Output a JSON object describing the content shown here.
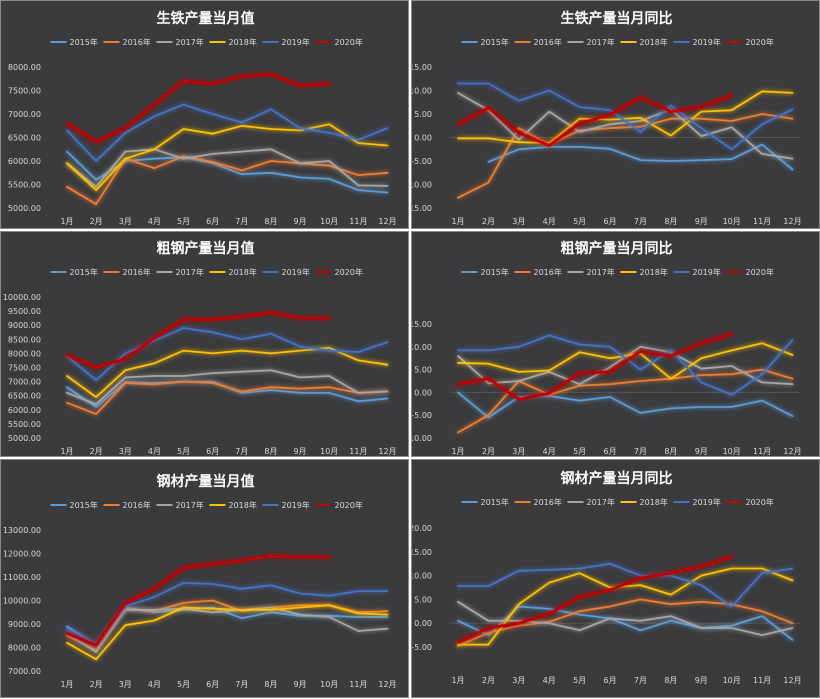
{
  "months": [
    "1月",
    "2月",
    "3月",
    "4月",
    "5月",
    "6月",
    "7月",
    "8月",
    "9月",
    "10月",
    "11月",
    "12月"
  ],
  "colors": {
    "2015年": "#5b9bd5",
    "2016年": "#ed7d31",
    "2017年": "#a5a5a5",
    "2018年": "#ffc000",
    "2019年": "#4472c4",
    "2020年": "#c00000"
  },
  "chart_data": [
    {
      "type": "line",
      "title": "生铁产量当月值",
      "ylim": [
        5000,
        8000
      ],
      "yticks": [
        "5000.00",
        "5500.00",
        "6000.00",
        "6500.00",
        "7000.00",
        "7500.00",
        "8000.00"
      ],
      "yvals": [
        5000,
        5500,
        6000,
        6500,
        7000,
        7500,
        8000
      ],
      "series": [
        {
          "name": "2015年",
          "values": [
            6200,
            5600,
            6000,
            6050,
            6080,
            5950,
            5720,
            5750,
            5650,
            5620,
            5380,
            5330
          ]
        },
        {
          "name": "2016年",
          "values": [
            5450,
            5080,
            6050,
            5850,
            6100,
            5980,
            5800,
            6000,
            5950,
            5900,
            5700,
            5750
          ]
        },
        {
          "name": "2017年",
          "values": [
            5950,
            5450,
            6200,
            6250,
            6050,
            6150,
            6200,
            6250,
            5950,
            6000,
            5480,
            5470
          ]
        },
        {
          "name": "2018年",
          "values": [
            5950,
            5380,
            6050,
            6250,
            6680,
            6580,
            6750,
            6680,
            6650,
            6780,
            6380,
            6330
          ]
        },
        {
          "name": "2019年",
          "values": [
            6650,
            6000,
            6600,
            6950,
            7200,
            7000,
            6820,
            7100,
            6700,
            6600,
            6450,
            6700
          ]
        },
        {
          "name": "2020年",
          "values": [
            6800,
            6400,
            6700,
            7200,
            7700,
            7650,
            7800,
            7850,
            7600,
            7650,
            null,
            null
          ]
        }
      ]
    },
    {
      "type": "line",
      "title": "生铁产量当月同比",
      "ylim": [
        -15,
        15
      ],
      "yticks": [
        "-15.00",
        "-10.00",
        "-5.00",
        "0.00",
        "5.00",
        "10.00",
        "15.00"
      ],
      "yvals": [
        -15,
        -10,
        -5,
        0,
        5,
        10,
        15
      ],
      "series": [
        {
          "name": "2015年",
          "values": [
            null,
            -5.2,
            -2.5,
            -2.0,
            -2.0,
            -2.4,
            -4.8,
            -5.0,
            -4.8,
            -4.6,
            -1.5,
            -6.8
          ]
        },
        {
          "name": "2016年",
          "values": [
            -12.8,
            -9.6,
            2.0,
            -1.5,
            1.5,
            2.0,
            2.3,
            4.0,
            4.0,
            3.5,
            5.0,
            4.0
          ]
        },
        {
          "name": "2017年",
          "values": [
            9.5,
            5.8,
            -0.5,
            5.5,
            1.2,
            2.8,
            3.5,
            6.0,
            0.3,
            2.2,
            -3.5,
            -4.5
          ]
        },
        {
          "name": "2018年",
          "values": [
            -0.2,
            -0.2,
            -1.0,
            -1.2,
            4.0,
            3.8,
            4.2,
            0.4,
            5.5,
            5.8,
            9.8,
            9.5
          ]
        },
        {
          "name": "2019年",
          "values": [
            11.5,
            11.5,
            7.8,
            10.0,
            6.5,
            5.8,
            1.2,
            6.8,
            2.0,
            -2.5,
            2.8,
            6.0
          ]
        },
        {
          "name": "2020年",
          "values": [
            2.8,
            6.3,
            1.0,
            -1.7,
            3.0,
            4.8,
            8.5,
            5.5,
            6.5,
            9.0,
            null,
            null
          ]
        }
      ]
    },
    {
      "type": "line",
      "title": "粗钢产量当月值",
      "ylim": [
        5000,
        10000
      ],
      "yticks": [
        "5000.00",
        "5500.00",
        "6000.00",
        "6500.00",
        "7000.00",
        "7500.00",
        "8000.00",
        "8500.00",
        "9000.00",
        "9500.00",
        "10000.00"
      ],
      "yvals": [
        5000,
        5500,
        6000,
        6500,
        7000,
        7500,
        8000,
        8500,
        9000,
        9500,
        10000
      ],
      "series": [
        {
          "name": "2015年",
          "values": [
            6800,
            6100,
            6980,
            6950,
            7000,
            7000,
            6600,
            6700,
            6600,
            6600,
            6300,
            6400
          ]
        },
        {
          "name": "2016年",
          "values": [
            6250,
            5850,
            6950,
            6900,
            7000,
            6950,
            6650,
            6800,
            6750,
            6800,
            6600,
            6650
          ]
        },
        {
          "name": "2017年",
          "values": [
            6600,
            6200,
            7150,
            7200,
            7200,
            7300,
            7350,
            7400,
            7150,
            7200,
            6600,
            6650
          ]
        },
        {
          "name": "2018年",
          "values": [
            7200,
            6450,
            7400,
            7650,
            8100,
            8000,
            8100,
            8000,
            8100,
            8200,
            7750,
            7600
          ]
        },
        {
          "name": "2019年",
          "values": [
            7900,
            7050,
            8000,
            8450,
            8900,
            8750,
            8500,
            8700,
            8250,
            8100,
            8050,
            8400
          ]
        },
        {
          "name": "2020年",
          "values": [
            7950,
            7500,
            7800,
            8550,
            9200,
            9200,
            9300,
            9450,
            9250,
            9250,
            null,
            null
          ]
        }
      ]
    },
    {
      "type": "line",
      "title": "粗钢产量当月同比",
      "ylim": [
        -10,
        15
      ],
      "yticks": [
        "-10.00",
        "-5.00",
        "0.00",
        "5.00",
        "10.00",
        "15.00"
      ],
      "yvals": [
        -10,
        -5,
        0,
        5,
        10,
        15
      ],
      "series": [
        {
          "name": "2015年",
          "values": [
            0.0,
            -5.5,
            -1.0,
            -0.8,
            -1.8,
            -1.0,
            -4.5,
            -3.5,
            -3.2,
            -3.2,
            -1.8,
            -5.2
          ]
        },
        {
          "name": "2016年",
          "values": [
            -8.8,
            -5.0,
            2.5,
            -0.5,
            1.5,
            1.8,
            2.5,
            3.0,
            3.8,
            4.0,
            5.0,
            3.0
          ]
        },
        {
          "name": "2017年",
          "values": [
            8.0,
            2.0,
            2.5,
            4.5,
            1.8,
            5.5,
            10.0,
            8.8,
            5.2,
            5.8,
            2.2,
            1.8
          ]
        },
        {
          "name": "2018年",
          "values": [
            6.5,
            6.3,
            4.5,
            4.8,
            8.8,
            7.5,
            8.5,
            3.0,
            7.5,
            9.2,
            10.8,
            8.2
          ]
        },
        {
          "name": "2019年",
          "values": [
            9.2,
            9.2,
            10.0,
            12.5,
            10.5,
            10.0,
            5.0,
            9.2,
            2.2,
            -0.5,
            4.0,
            11.5
          ]
        },
        {
          "name": "2020年",
          "values": [
            1.8,
            3.0,
            -1.5,
            -0.2,
            4.2,
            4.5,
            9.0,
            8.0,
            10.8,
            12.8,
            null,
            null
          ]
        }
      ]
    },
    {
      "type": "line",
      "title": "钢材产量当月值",
      "ylim": [
        7000,
        13000
      ],
      "yticks": [
        "7000.00",
        "8000.00",
        "9000.00",
        "10000.00",
        "11000.00",
        "12000.00",
        "13000.00"
      ],
      "yvals": [
        7000,
        8000,
        9000,
        10000,
        11000,
        12000,
        13000
      ],
      "series": [
        {
          "name": "2015年",
          "values": [
            8900,
            8100,
            9700,
            9500,
            9600,
            9700,
            9250,
            9500,
            9350,
            9350,
            9300,
            9300
          ]
        },
        {
          "name": "2016年",
          "values": [
            8500,
            7900,
            9650,
            9550,
            9900,
            10000,
            9550,
            9700,
            9800,
            9800,
            9500,
            9550
          ]
        },
        {
          "name": "2017年",
          "values": [
            8600,
            7800,
            9600,
            9600,
            9650,
            9500,
            9600,
            9700,
            9400,
            9300,
            8700,
            8800
          ]
        },
        {
          "name": "2018年",
          "values": [
            8200,
            7500,
            8950,
            9150,
            9700,
            9650,
            9600,
            9600,
            9700,
            9800,
            9450,
            9400
          ]
        },
        {
          "name": "2019年",
          "values": [
            8800,
            8100,
            9750,
            10150,
            10750,
            10700,
            10500,
            10650,
            10300,
            10200,
            10400,
            10400
          ]
        },
        {
          "name": "2020年",
          "values": [
            8600,
            8100,
            9900,
            10500,
            11400,
            11550,
            11700,
            11900,
            11850,
            11850,
            null,
            null
          ]
        }
      ]
    },
    {
      "type": "line",
      "title": "钢材产量当月同比",
      "ylim": [
        -5,
        20
      ],
      "yticks": [
        "-5.00",
        "0.00",
        "5.00",
        "10.00",
        "15.00",
        "20.00"
      ],
      "yvals": [
        -5,
        0,
        5,
        10,
        15,
        20
      ],
      "series": [
        {
          "name": "2015年",
          "values": [
            0.5,
            -2.5,
            3.5,
            3.0,
            1.8,
            1.0,
            -1.5,
            0.5,
            -1.0,
            -0.5,
            1.5,
            -3.5
          ]
        },
        {
          "name": "2016年",
          "values": [
            -4.8,
            -2.0,
            -0.5,
            0.3,
            2.5,
            3.5,
            5.0,
            4.0,
            4.5,
            4.0,
            2.5,
            0.0
          ]
        },
        {
          "name": "2017年",
          "values": [
            4.5,
            0.5,
            0.5,
            0.0,
            -1.5,
            1.0,
            0.5,
            1.5,
            -1.0,
            -1.0,
            -2.5,
            -1.0
          ]
        },
        {
          "name": "2018年",
          "values": [
            -4.5,
            -4.5,
            4.0,
            8.5,
            10.5,
            7.5,
            8.0,
            6.0,
            10.0,
            11.5,
            11.5,
            9.0
          ]
        },
        {
          "name": "2019年",
          "values": [
            7.8,
            7.8,
            11.0,
            11.2,
            11.5,
            12.5,
            10.0,
            10.0,
            8.0,
            3.5,
            10.5,
            11.5
          ]
        },
        {
          "name": "2020年",
          "values": [
            -4.0,
            -1.0,
            0.0,
            2.0,
            5.5,
            7.0,
            9.5,
            10.5,
            12.0,
            14.0,
            null,
            null
          ]
        }
      ]
    }
  ]
}
